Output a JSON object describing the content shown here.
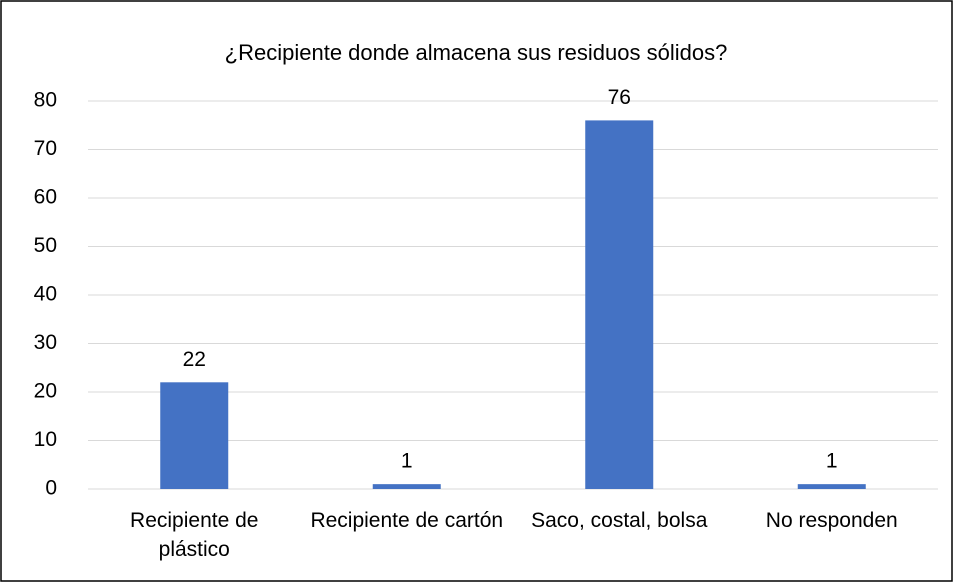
{
  "chart_data": {
    "type": "bar",
    "title": "¿Recipiente donde almacena sus residuos sólidos?",
    "categories": [
      "Recipiente de plástico",
      "Recipiente de cartón",
      "Saco, costal, bolsa",
      "No responden"
    ],
    "values": [
      22,
      1,
      76,
      1
    ],
    "color": "#4472c4",
    "ylim": [
      0,
      80
    ],
    "yticks": [
      0,
      10,
      20,
      30,
      40,
      50,
      60,
      70,
      80
    ],
    "grid": true,
    "data_labels": true
  }
}
